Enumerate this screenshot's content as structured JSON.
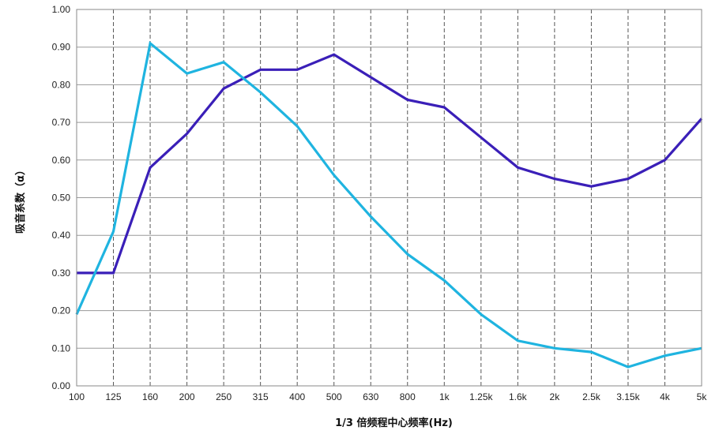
{
  "chart_data": {
    "type": "line",
    "title": "",
    "xlabel": "1/3 倍频程中心频率(Hz)",
    "ylabel": "吸音系数（α）",
    "categories": [
      "100",
      "125",
      "160",
      "200",
      "250",
      "315",
      "400",
      "500",
      "630",
      "800",
      "1k",
      "1.25k",
      "1.6k",
      "2k",
      "2.5k",
      "3.15k",
      "4k",
      "5k"
    ],
    "ylim": [
      0,
      1.0
    ],
    "yticks": [
      "0.00",
      "0.10",
      "0.20",
      "0.30",
      "0.40",
      "0.50",
      "0.60",
      "0.70",
      "0.80",
      "0.90",
      "1.00"
    ],
    "grid": true,
    "series": [
      {
        "color": "#3a1fb8",
        "values": [
          0.3,
          0.3,
          0.58,
          0.67,
          0.79,
          0.84,
          0.84,
          0.88,
          0.82,
          0.76,
          0.74,
          0.66,
          0.58,
          0.55,
          0.53,
          0.55,
          0.6,
          0.71
        ]
      },
      {
        "color": "#1fb4e0",
        "values": [
          0.19,
          0.41,
          0.91,
          0.83,
          0.86,
          0.78,
          0.69,
          0.56,
          0.45,
          0.35,
          0.28,
          0.19,
          0.12,
          0.1,
          0.09,
          0.05,
          0.08,
          0.1
        ]
      }
    ]
  }
}
